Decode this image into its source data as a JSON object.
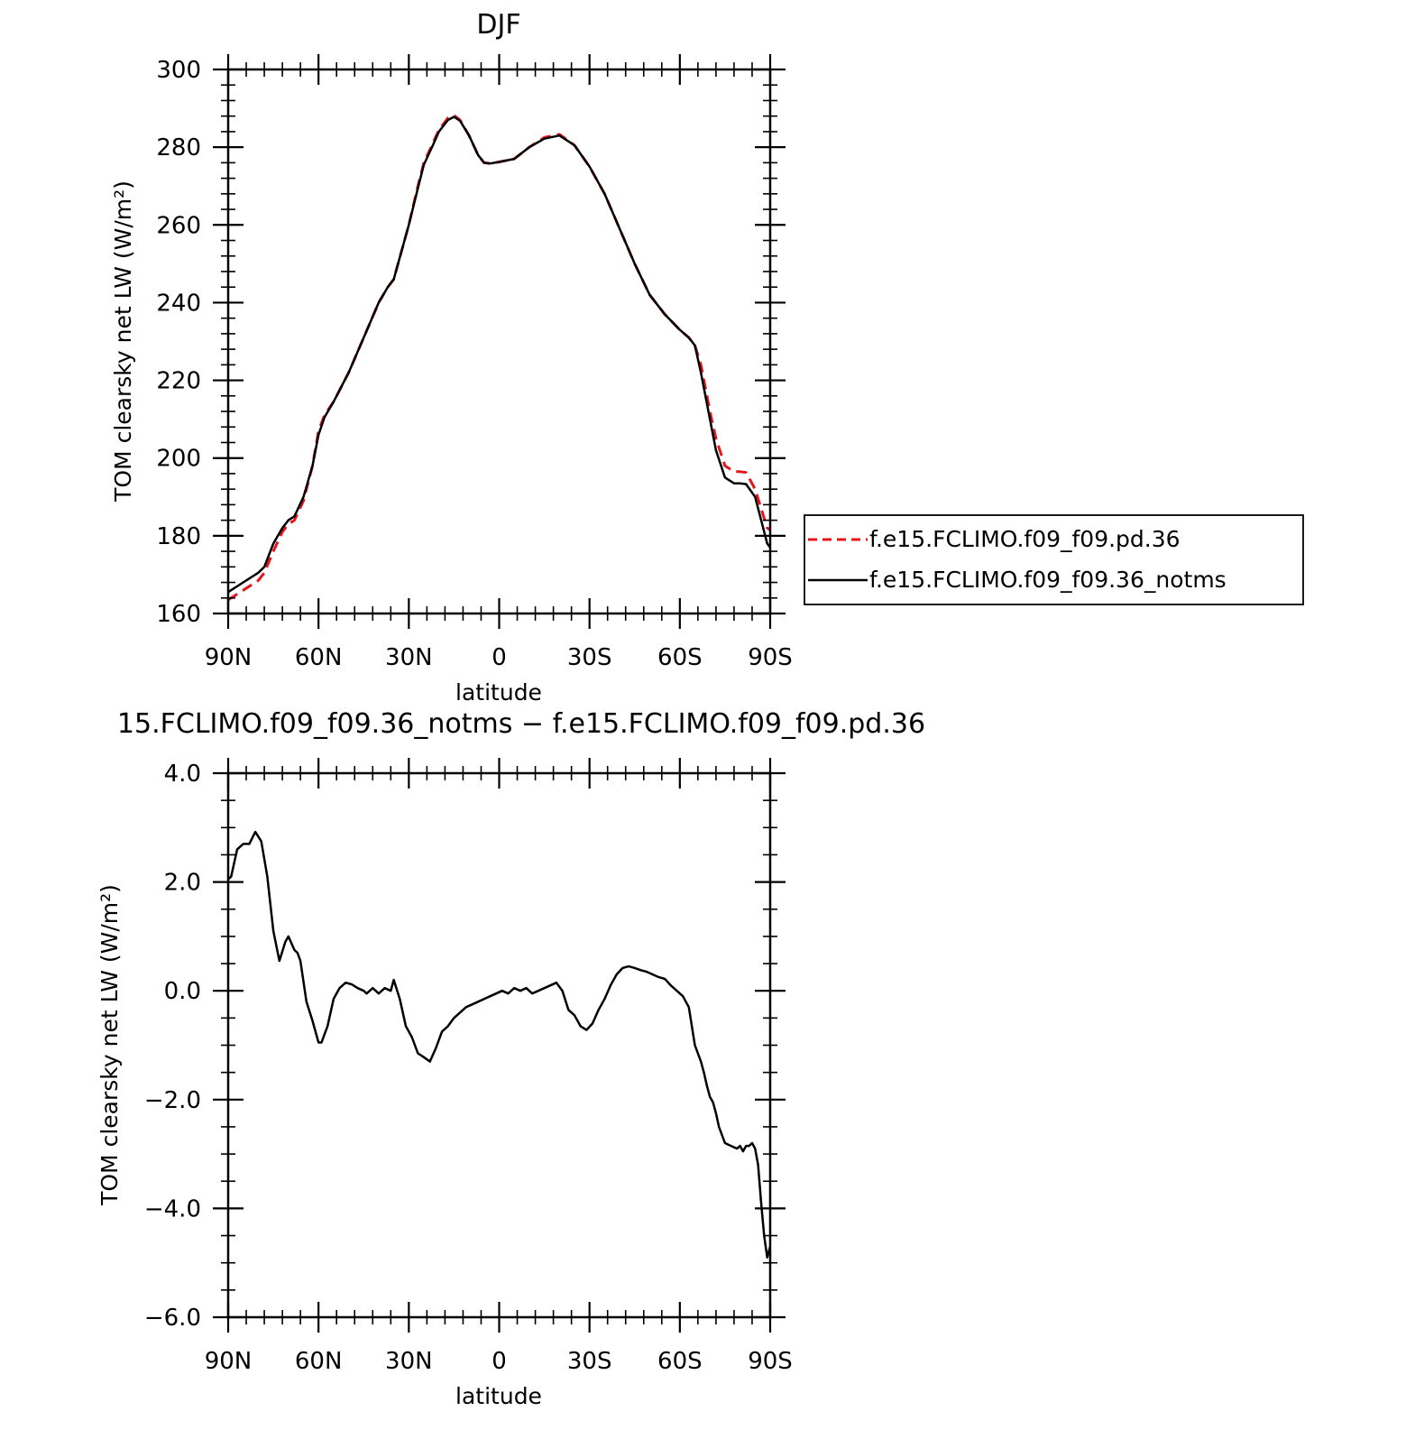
{
  "colors": {
    "ref": "#e8141c",
    "test": "#000000",
    "frame": "#000000"
  },
  "chart_data": [
    {
      "type": "line",
      "title": "DJF",
      "xlabel": "latitude",
      "ylabel": "TOM clearsky net LW (W/m²)",
      "x_ticklabels": [
        "90N",
        "60N",
        "30N",
        "0",
        "30S",
        "60S",
        "90S"
      ],
      "y_ticklabels": [
        "160",
        "180",
        "200",
        "220",
        "240",
        "260",
        "280",
        "300"
      ],
      "xlim": [
        90,
        -90
      ],
      "ylim": [
        160,
        300
      ],
      "legend_position": "right",
      "x": [
        90,
        85,
        80,
        78,
        75,
        72,
        70,
        68,
        65,
        62,
        60,
        58,
        55,
        50,
        45,
        40,
        37,
        35,
        30,
        27,
        25,
        22,
        20,
        17,
        15,
        13,
        10,
        7,
        5,
        3,
        0,
        -5,
        -10,
        -15,
        -20,
        -25,
        -30,
        -35,
        -40,
        -45,
        -50,
        -55,
        -60,
        -63,
        -65,
        -67,
        -70,
        -72,
        -75,
        -78,
        -80,
        -82,
        -85,
        -87,
        -89,
        -90
      ],
      "series": [
        {
          "name": "f.e15.FCLIMO.f09_f09.pd.36",
          "style": "dashed",
          "values": [
            163.5,
            166,
            168.5,
            170.5,
            176,
            181,
            183,
            184,
            189,
            198,
            207,
            211,
            214.5,
            222,
            231,
            240,
            244,
            246,
            260,
            270,
            276,
            281,
            284.5,
            287.5,
            288.2,
            287,
            283,
            278,
            276,
            275.8,
            276.2,
            277,
            280,
            282.5,
            283.3,
            280.5,
            275,
            268,
            259,
            250,
            242,
            237,
            233,
            231,
            229,
            224,
            212,
            205,
            198,
            196.5,
            196.5,
            196.3,
            192,
            187,
            182,
            181.5
          ]
        },
        {
          "name": "f.e15.FCLIMO.f09_f09.36_notms",
          "style": "solid",
          "values": [
            165.5,
            168,
            170.5,
            172,
            178,
            182,
            184,
            185,
            190,
            198,
            206,
            210.5,
            214.5,
            222,
            231,
            240,
            244,
            246,
            260,
            269.5,
            275.5,
            280.5,
            284,
            287,
            287.8,
            286.8,
            283,
            278,
            276,
            275.8,
            276.2,
            277,
            280,
            282.2,
            283,
            280.5,
            275,
            268,
            259,
            250,
            242,
            237,
            233,
            231,
            229,
            222,
            210,
            202,
            195,
            193.5,
            193.5,
            193.3,
            190,
            184,
            178,
            177
          ]
        }
      ]
    },
    {
      "type": "line",
      "title": "15.FCLIMO.f09_f09.36_notms − f.e15.FCLIMO.f09_f09.pd.36",
      "xlabel": "latitude",
      "ylabel": "TOM clearsky net LW (W/m²)",
      "x_ticklabels": [
        "90N",
        "60N",
        "30N",
        "0",
        "30S",
        "60S",
        "90S"
      ],
      "y_ticklabels": [
        "−6.0",
        "−4.0",
        "−2.0",
        "0.0",
        "2.0",
        "4.0"
      ],
      "xlim": [
        90,
        -90
      ],
      "ylim": [
        -6,
        4
      ],
      "x": [
        90,
        89,
        87,
        85,
        83,
        81,
        79,
        77,
        75,
        73,
        71,
        70,
        68,
        67,
        66,
        64,
        62,
        60,
        59,
        58,
        57,
        55,
        53,
        51,
        49,
        47,
        45,
        44,
        42,
        40,
        38,
        36,
        35,
        33,
        31,
        29,
        27,
        25,
        23,
        21,
        19,
        17,
        15,
        13,
        11,
        9,
        7,
        5,
        3,
        1,
        -1,
        -3,
        -5,
        -7,
        -9,
        -11,
        -13,
        -15,
        -17,
        -19,
        -21,
        -23,
        -25,
        -27,
        -29,
        -31,
        -33,
        -35,
        -37,
        -39,
        -41,
        -43,
        -45,
        -47,
        -49,
        -51,
        -53,
        -55,
        -57,
        -59,
        -61,
        -63,
        -65,
        -67,
        -68,
        -69,
        -70,
        -71,
        -72,
        -73,
        -75,
        -77,
        -79,
        -80,
        -81,
        -82,
        -83,
        -84,
        -85,
        -86,
        -87,
        -88,
        -89,
        -90
      ],
      "series": [
        {
          "name": "",
          "values": [
            2.05,
            2.1,
            2.6,
            2.7,
            2.7,
            2.92,
            2.75,
            2.1,
            1.1,
            0.55,
            0.9,
            1.0,
            0.75,
            0.7,
            0.55,
            -0.2,
            -0.55,
            -0.95,
            -0.95,
            -0.8,
            -0.65,
            -0.15,
            0.05,
            0.15,
            0.12,
            0.05,
            0.0,
            -0.05,
            0.05,
            -0.05,
            0.05,
            0.0,
            0.2,
            -0.15,
            -0.65,
            -0.85,
            -1.15,
            -1.22,
            -1.3,
            -1.05,
            -0.75,
            -0.65,
            -0.5,
            -0.4,
            -0.3,
            -0.25,
            -0.2,
            -0.15,
            -0.1,
            -0.05,
            0.0,
            -0.05,
            0.05,
            0.0,
            0.05,
            -0.05,
            0.0,
            0.05,
            0.1,
            0.15,
            0.0,
            -0.35,
            -0.45,
            -0.65,
            -0.72,
            -0.6,
            -0.35,
            -0.15,
            0.1,
            0.3,
            0.42,
            0.45,
            0.42,
            0.38,
            0.35,
            0.3,
            0.25,
            0.22,
            0.1,
            0.0,
            -0.1,
            -0.3,
            -1.0,
            -1.3,
            -1.5,
            -1.75,
            -1.95,
            -2.05,
            -2.25,
            -2.5,
            -2.8,
            -2.85,
            -2.9,
            -2.85,
            -2.95,
            -2.85,
            -2.85,
            -2.8,
            -2.9,
            -3.2,
            -3.9,
            -4.5,
            -4.9,
            -4.7
          ]
        }
      ]
    }
  ]
}
